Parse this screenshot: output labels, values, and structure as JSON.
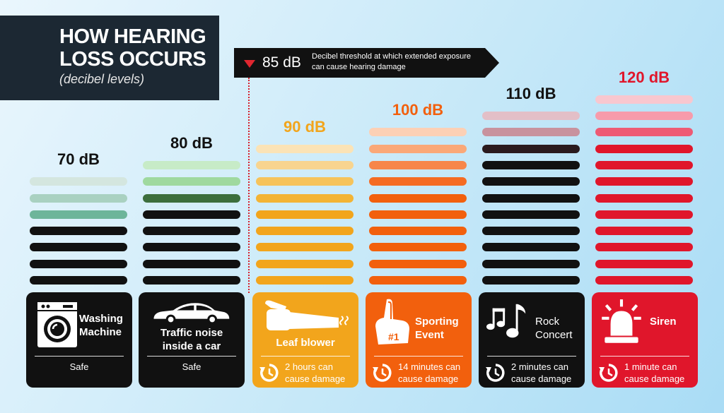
{
  "title": {
    "line1": "HOW HEARING",
    "line2": "LOSS OCCURS",
    "subtitle": "(decibel levels)"
  },
  "threshold": {
    "value": "85 dB",
    "note": "Decibel threshold at which extended exposure can cause hearing damage"
  },
  "colors": {
    "safe": "#111111",
    "leaf": "#f2a51c",
    "sport": "#f2600d",
    "rock": "#111111",
    "siren": "#e0162b",
    "dark_panel": "#1c2833",
    "alert": "#e0262f"
  },
  "levels": [
    {
      "db": "70 dB",
      "label": "Washing Machine",
      "footer": "Safe",
      "icon": "washing-machine-icon",
      "color": "#111111",
      "bars": [
        "#d4e6df",
        "#a9d1c1",
        "#6db59a",
        "#111111",
        "#111111",
        "#111111",
        "#111111"
      ]
    },
    {
      "db": "80 dB",
      "label": "Traffic noise inside a car",
      "footer": "Safe",
      "icon": "car-icon",
      "color": "#111111",
      "bars": [
        "#c7ebc7",
        "#9fd99f",
        "#3c6e3c",
        "#111111",
        "#111111",
        "#111111",
        "#111111",
        "#111111"
      ]
    },
    {
      "db": "90 dB",
      "label": "Leaf blower",
      "footer": "2 hours can cause damage",
      "icon": "leaf-blower-icon",
      "color": "#f2a51c",
      "bars": [
        "#fbe3b6",
        "#f8d48f",
        "#f6c35a",
        "#f3b435",
        "#f2a51c",
        "#f2a51c",
        "#f2a51c",
        "#f2a51c",
        "#f2a51c"
      ]
    },
    {
      "db": "100 dB",
      "label": "Sporting Event",
      "footer": "14 minutes can cause damage",
      "icon": "foam-finger-icon",
      "color": "#f2600d",
      "bars": [
        "#fcd0b5",
        "#faa878",
        "#f7864a",
        "#f56b22",
        "#f2600d",
        "#f2600d",
        "#f2600d",
        "#f2600d",
        "#f2600d",
        "#f2600d"
      ]
    },
    {
      "db": "110 dB",
      "label": "Rock Concert",
      "footer": "2 minutes can cause damage",
      "icon": "music-notes-icon",
      "color": "#111111",
      "bars": [
        "#e3bfc7",
        "#c8929e",
        "#2a1a1e",
        "#111111",
        "#111111",
        "#111111",
        "#111111",
        "#111111",
        "#111111",
        "#111111",
        "#111111"
      ]
    },
    {
      "db": "120 dB",
      "label": "Siren",
      "footer": "1 minute can cause damage",
      "icon": "siren-icon",
      "color": "#e0162b",
      "bars": [
        "#f8c7cf",
        "#f79bab",
        "#ee5a74",
        "#e0162b",
        "#e0162b",
        "#e0162b",
        "#e0162b",
        "#e0162b",
        "#e0162b",
        "#e0162b",
        "#e0162b",
        "#e0162b"
      ]
    }
  ]
}
